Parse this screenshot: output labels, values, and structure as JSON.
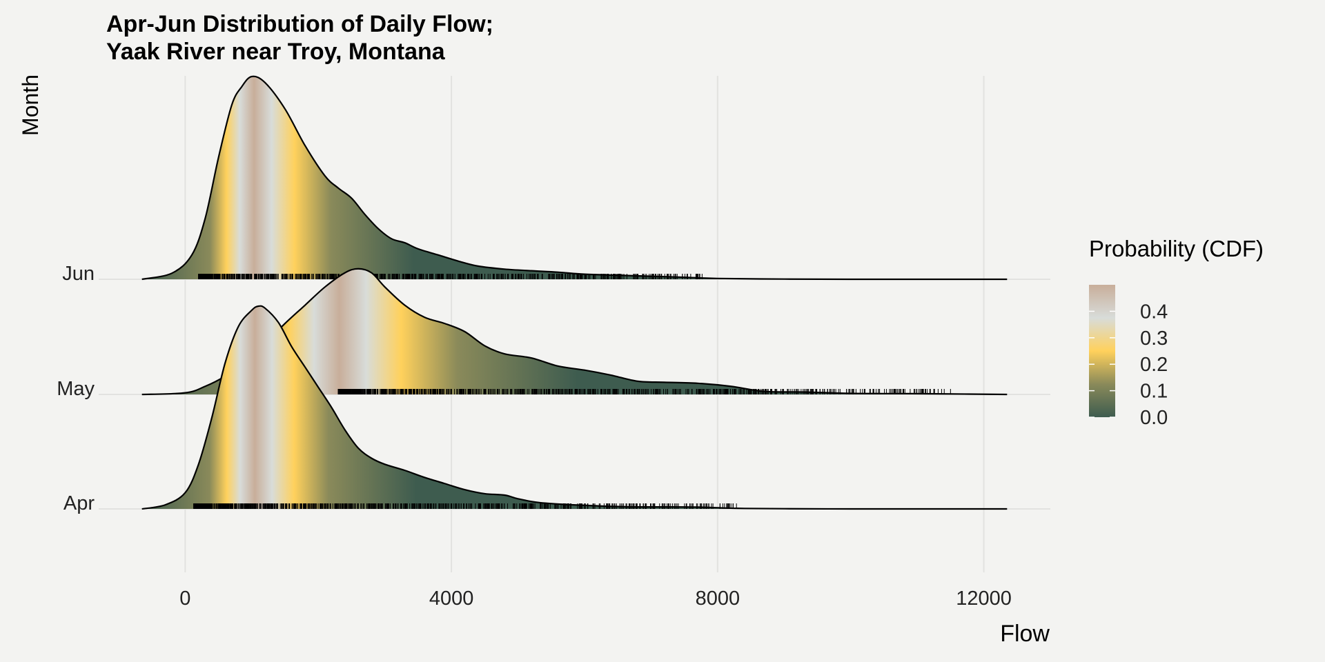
{
  "colors": {
    "background": "#f3f3f1",
    "grid": "#e2e2e0",
    "outline": "#000000",
    "gradient": [
      "#3e5c4f",
      "#8a8a5a",
      "#ffd15c",
      "#d8dcd9",
      "#c8ae9a"
    ]
  },
  "chart_data": {
    "type": "ridgeline",
    "title_line1": "Apr-Jun Distribution of Daily Flow;",
    "title_line2": "Yaak River near Troy, Montana",
    "xlabel": "Flow",
    "ylabel": "Month",
    "xlim": [
      -1300,
      13000
    ],
    "x_ticks": [
      0,
      4000,
      8000,
      12000
    ],
    "x_tick_labels": [
      "0",
      "4000",
      "8000",
      "12000"
    ],
    "grid": true,
    "fill_legend": {
      "title": "Probability (CDF)",
      "placement": "right",
      "ticks": [
        0.0,
        0.1,
        0.2,
        0.3,
        0.4
      ],
      "tick_labels": [
        "0.0",
        "0.1",
        "0.2",
        "0.3",
        "0.4"
      ],
      "range": [
        0,
        0.5
      ]
    },
    "series": [
      {
        "name": "Apr",
        "density_x": [
          -650,
          -300,
          0,
          200,
          400,
          600,
          800,
          1000,
          1100,
          1200,
          1400,
          1600,
          1800,
          2000,
          2200,
          2400,
          2600,
          2800,
          3000,
          3300,
          3600,
          3900,
          4200,
          4500,
          4800,
          5000,
          5300,
          5700,
          6200,
          6700,
          7200,
          7700,
          8300,
          9000,
          10000,
          11000,
          12350
        ],
        "density_y": [
          0.0,
          0.02,
          0.08,
          0.22,
          0.45,
          0.72,
          0.9,
          0.98,
          1.0,
          0.99,
          0.92,
          0.8,
          0.7,
          0.6,
          0.5,
          0.39,
          0.3,
          0.25,
          0.22,
          0.19,
          0.155,
          0.125,
          0.095,
          0.075,
          0.068,
          0.05,
          0.032,
          0.022,
          0.015,
          0.01,
          0.01,
          0.009,
          0.003,
          0.001,
          0.0,
          0.0,
          0.0
        ],
        "cdf_at_quartiles": [
          0.25,
          0.5,
          0.75
        ],
        "rug_min": 130,
        "rug_max": 8300
      },
      {
        "name": "May",
        "density_x": [
          -650,
          0,
          300,
          600,
          900,
          1200,
          1500,
          1800,
          2100,
          2400,
          2600,
          2800,
          3000,
          3300,
          3600,
          3900,
          4200,
          4500,
          4800,
          5200,
          5600,
          6000,
          6400,
          6800,
          7200,
          7700,
          8200,
          8700,
          9300,
          10000,
          10700,
          11300,
          12350
        ],
        "density_y": [
          0.0,
          0.008,
          0.04,
          0.09,
          0.16,
          0.25,
          0.35,
          0.44,
          0.53,
          0.6,
          0.62,
          0.6,
          0.53,
          0.44,
          0.38,
          0.35,
          0.31,
          0.24,
          0.2,
          0.18,
          0.14,
          0.12,
          0.095,
          0.065,
          0.06,
          0.055,
          0.04,
          0.015,
          0.012,
          0.005,
          0.004,
          0.003,
          0.0
        ],
        "cdf_at_quartiles": [
          0.25,
          0.5,
          0.75
        ],
        "rug_min": 2300,
        "rug_max": 11500
      },
      {
        "name": "Jun",
        "density_x": [
          -650,
          -200,
          100,
          300,
          500,
          700,
          850,
          1000,
          1200,
          1500,
          1800,
          2100,
          2300,
          2500,
          2700,
          2900,
          3100,
          3300,
          3500,
          3800,
          4100,
          4400,
          4800,
          5200,
          5600,
          6000,
          6500,
          7000,
          7500,
          8000,
          9000,
          10000,
          11000,
          12350
        ],
        "density_y": [
          0.0,
          0.03,
          0.12,
          0.3,
          0.6,
          0.86,
          0.95,
          1.0,
          0.97,
          0.84,
          0.66,
          0.51,
          0.45,
          0.4,
          0.32,
          0.25,
          0.2,
          0.18,
          0.15,
          0.12,
          0.09,
          0.065,
          0.05,
          0.042,
          0.035,
          0.025,
          0.02,
          0.015,
          0.01,
          0.004,
          0.001,
          0.0,
          0.0,
          0.0
        ],
        "cdf_at_quartiles": [
          0.25,
          0.5,
          0.75
        ],
        "rug_min": 200,
        "rug_max": 7800
      }
    ]
  }
}
